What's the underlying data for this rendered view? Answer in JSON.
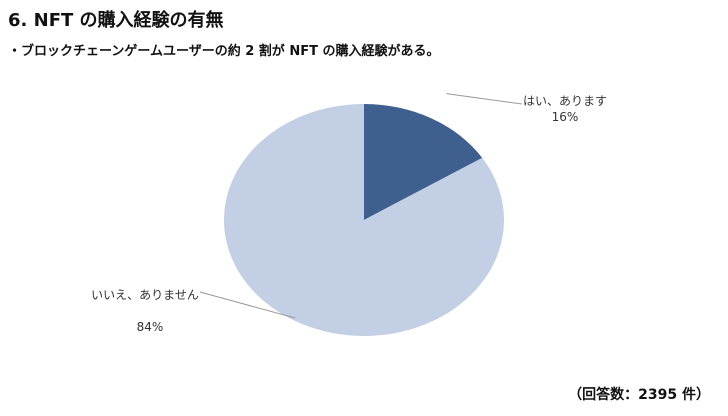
{
  "chart_data": {
    "type": "pie",
    "title": "6. NFT の購入経験の有無",
    "subtitle": "・ブロックチェーンゲームユーザーの約 2 割が NFT の購入経験がある。",
    "categories": [
      "はい、あります",
      "いいえ、ありません"
    ],
    "values": [
      16,
      84
    ],
    "value_labels": [
      "16%",
      "84%"
    ],
    "colors": [
      "#3f5f8f",
      "#c2cfe4"
    ],
    "note": "（回答数：2395 件）"
  }
}
